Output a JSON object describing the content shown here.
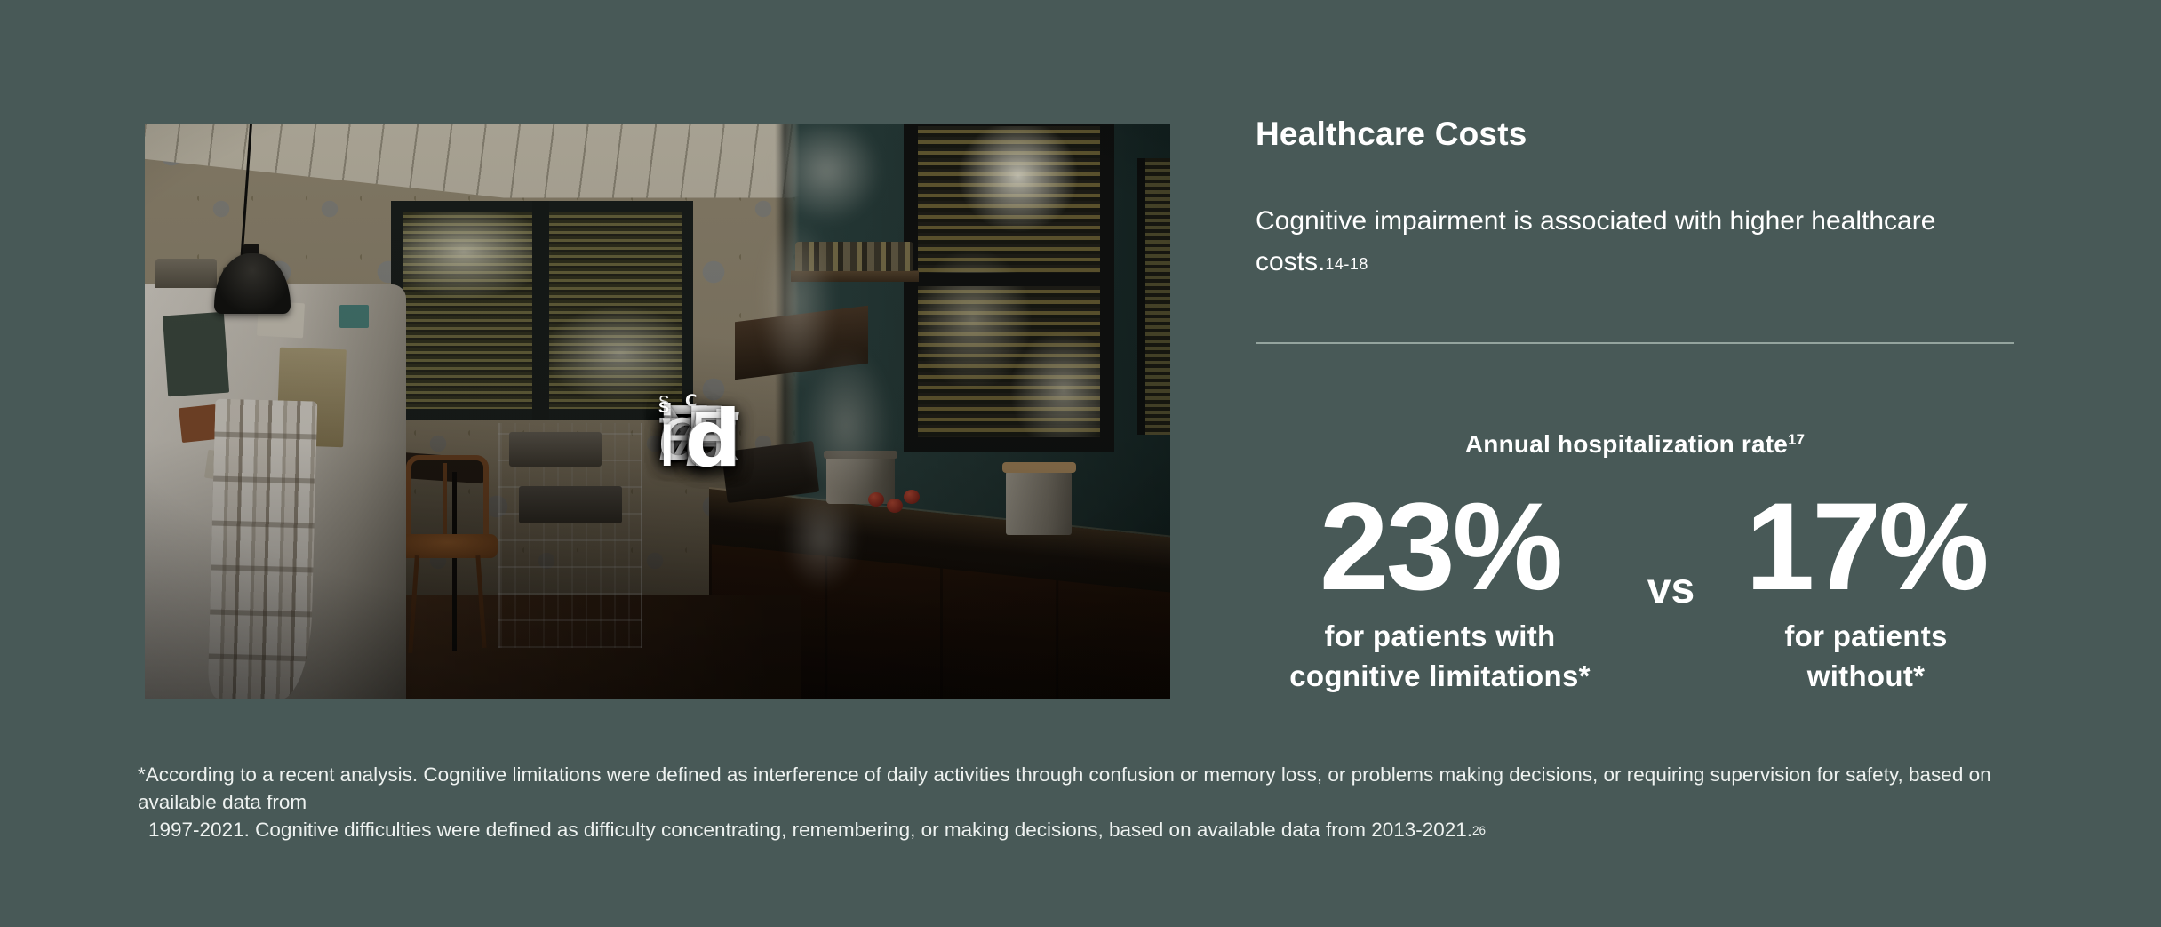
{
  "colors": {
    "background": "#485957",
    "text": "#FFFFFF",
    "divider": "#94A49E"
  },
  "hero": {
    "overlay": {
      "line1_text": "EXtenSive CaRe",
      "line2_text": "iS NeEdEd",
      "words": [
        [
          "E",
          "X",
          "t",
          "e",
          "n",
          "S",
          "i",
          "v",
          "e"
        ],
        [
          "C",
          "a",
          "R",
          "e"
        ],
        [
          "i",
          "S"
        ],
        [
          "N",
          "e",
          "E",
          "d",
          "E",
          "d"
        ]
      ]
    }
  },
  "panel": {
    "heading": "Healthcare Costs",
    "body": "Cognitive impairment is associated with higher healthcare costs.",
    "body_citation": "14-18",
    "stats": {
      "title": "Annual hospitalization rate",
      "title_citation": "17",
      "left": {
        "value": "23%",
        "caption_line1": "for patients with",
        "caption_line2": "cognitive limitations*"
      },
      "versus": "vs",
      "right": {
        "value": "17%",
        "caption_line1": "for patients",
        "caption_line2": "without*"
      }
    }
  },
  "footnote": {
    "marker": "*",
    "line1": "According to a recent analysis. Cognitive limitations were defined as interference of daily activities through confusion or memory loss, or problems making decisions, or requiring supervision for safety, based on available data from",
    "line2": "1997-2021. Cognitive difficulties were defined as difficulty concentrating, remembering, or making decisions, based on available data from 2013-2021.",
    "citation": "26"
  }
}
